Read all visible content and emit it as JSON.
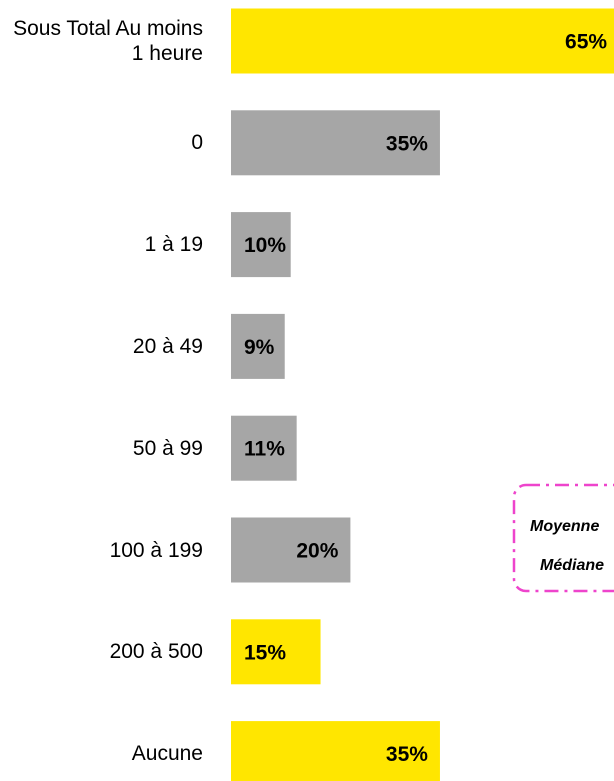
{
  "chart_data": {
    "type": "bar",
    "categories": [
      "Sous Total Au moins 1 heure",
      "0",
      "1 à 19",
      "20 à 49",
      "50 à 99",
      "100 à 199",
      "200 à 500",
      "Aucune"
    ],
    "values": [
      65,
      35,
      10,
      9,
      11,
      20,
      15,
      35
    ],
    "value_labels": [
      "65%",
      "35%",
      "10%",
      "9%",
      "11%",
      "20%",
      "15%",
      "35%"
    ],
    "colors": [
      "#ffe600",
      "#a6a6a6",
      "#a6a6a6",
      "#a6a6a6",
      "#a6a6a6",
      "#a6a6a6",
      "#ffe600",
      "#ffe600"
    ],
    "annotations": [
      "Moyenne",
      "Médiane"
    ]
  }
}
